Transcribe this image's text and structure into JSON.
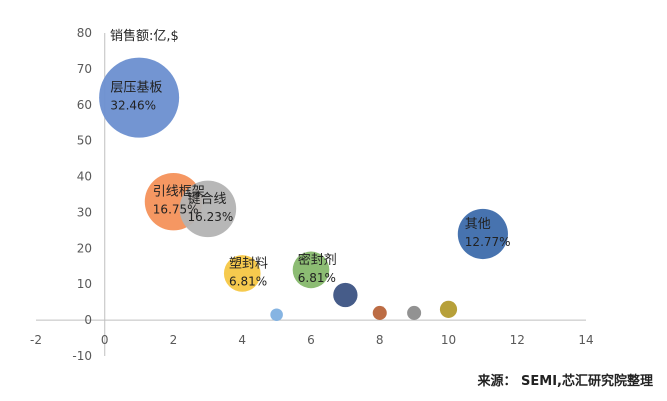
{
  "chart_data": {
    "type": "scatter",
    "ylabel": "销售额:亿,$",
    "xlim": [
      -2,
      14
    ],
    "ylim": [
      -10,
      80
    ],
    "xticks": [
      "-2",
      "0",
      "2",
      "4",
      "6",
      "8",
      "10",
      "12",
      "14"
    ],
    "yticks": [
      "-10",
      "0",
      "10",
      "20",
      "30",
      "40",
      "50",
      "60",
      "70",
      "80"
    ],
    "points": [
      {
        "x": 1,
        "y": 62,
        "size": 32.46,
        "name": "层压基板",
        "pct": "32.46%",
        "color": "#6b8fd0"
      },
      {
        "x": 2,
        "y": 33,
        "size": 16.75,
        "name": "引线框架",
        "pct": "16.75%",
        "color": "#f4915a"
      },
      {
        "x": 3,
        "y": 31,
        "size": 16.23,
        "name": "键合线",
        "pct": "16.23%",
        "color": "#b3b3b3"
      },
      {
        "x": 11,
        "y": 24,
        "size": 12.77,
        "name": "其他",
        "pct": "12.77%",
        "color": "#3d6bab"
      },
      {
        "x": 4,
        "y": 13,
        "size": 6.81,
        "name": "塑封料",
        "pct": "6.81%",
        "color": "#f6c744"
      },
      {
        "x": 6,
        "y": 14,
        "size": 6.81,
        "name": "密封剂",
        "pct": "6.81%",
        "color": "#86b86b"
      },
      {
        "x": 7,
        "y": 7,
        "size": 3.0,
        "name": "",
        "pct": "",
        "color": "#3c5383"
      },
      {
        "x": 5,
        "y": 1.5,
        "size": 0.8,
        "name": "",
        "pct": "",
        "color": "#7fb0e0"
      },
      {
        "x": 8,
        "y": 2,
        "size": 1.0,
        "name": "",
        "pct": "",
        "color": "#b8643a"
      },
      {
        "x": 9,
        "y": 2,
        "size": 1.0,
        "name": "",
        "pct": "",
        "color": "#8c8c8c"
      },
      {
        "x": 10,
        "y": 3,
        "size": 1.5,
        "name": "",
        "pct": "",
        "color": "#b39b2e"
      }
    ]
  },
  "source_text": "来源：  SEMI,芯汇研究院整理"
}
